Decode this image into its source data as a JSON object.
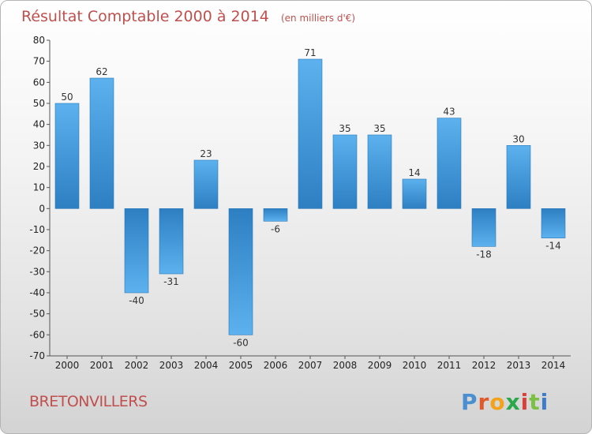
{
  "chart_data": {
    "type": "bar",
    "title": "Résultat Comptable 2000 à 2014",
    "subtitle": "(en milliers d'€)",
    "categories": [
      "2000",
      "2001",
      "2002",
      "2003",
      "2004",
      "2005",
      "2006",
      "2007",
      "2008",
      "2009",
      "2010",
      "2011",
      "2012",
      "2013",
      "2014"
    ],
    "values": [
      50,
      62,
      -40,
      -31,
      23,
      -60,
      -6,
      71,
      35,
      35,
      14,
      43,
      -18,
      30,
      -14
    ],
    "xlabel": "",
    "ylabel": "",
    "ylim": [
      -70,
      80
    ],
    "yticks": [
      80,
      70,
      60,
      50,
      40,
      30,
      20,
      10,
      0,
      -10,
      -20,
      -30,
      -40,
      -50,
      -60,
      -70
    ],
    "grid": false,
    "bar_color": "#3f9ae0"
  },
  "location": "BRETONVILLERS",
  "brand": {
    "name": "Proxiti",
    "letter_colors": [
      "#4a8fd0",
      "#e0592b",
      "#f2a21b",
      "#2aa84a",
      "#d8403a",
      "#7bc043",
      "#3d7cc9"
    ]
  }
}
